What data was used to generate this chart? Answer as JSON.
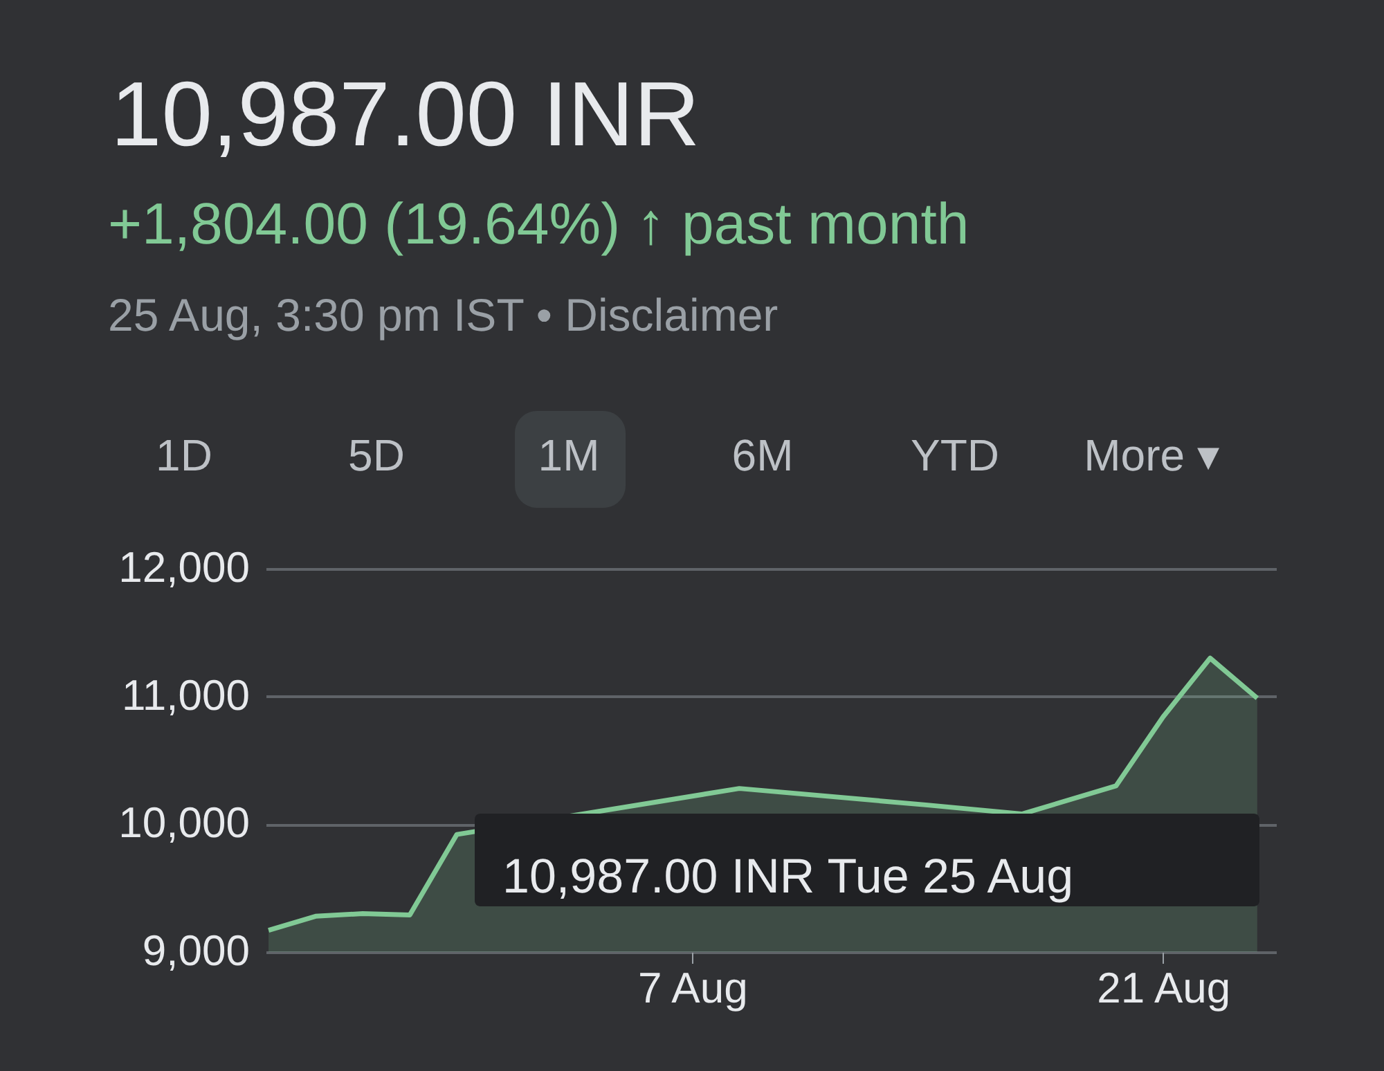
{
  "chart_data": {
    "type": "area",
    "title": "10,987.00 INR",
    "subtitle": "+1,804.00 (19.64%) ↑ past month",
    "annotations": [
      "25 Aug, 3:30 pm IST • Disclaimer",
      "1D",
      "5D",
      "1M",
      "6M",
      "YTD",
      "More ▾",
      "10,987.00 INR  Tue 25 Aug"
    ],
    "categories": [
      null,
      null,
      null,
      null,
      null,
      null,
      null,
      null,
      null,
      "7 Aug",
      null,
      null,
      null,
      null,
      null,
      null,
      null,
      null,
      null,
      "21 Aug",
      null,
      null
    ],
    "series": [
      {
        "color": "#81c995",
        "values": [
          9170,
          9280,
          9300,
          9290,
          9920,
          null,
          null,
          null,
          null,
          null,
          10280,
          null,
          null,
          null,
          10150,
          null,
          10080,
          null,
          10300,
          10840,
          11300,
          10987
        ]
      }
    ],
    "ylim": [
      9000,
      12000
    ],
    "yticks": [
      {
        "value": 9000,
        "label": "9,000"
      },
      {
        "value": 10000,
        "label": "10,000"
      },
      {
        "value": 11000,
        "label": "11,000"
      },
      {
        "value": 12000,
        "label": "12,000"
      }
    ],
    "grid": "y"
  }
}
